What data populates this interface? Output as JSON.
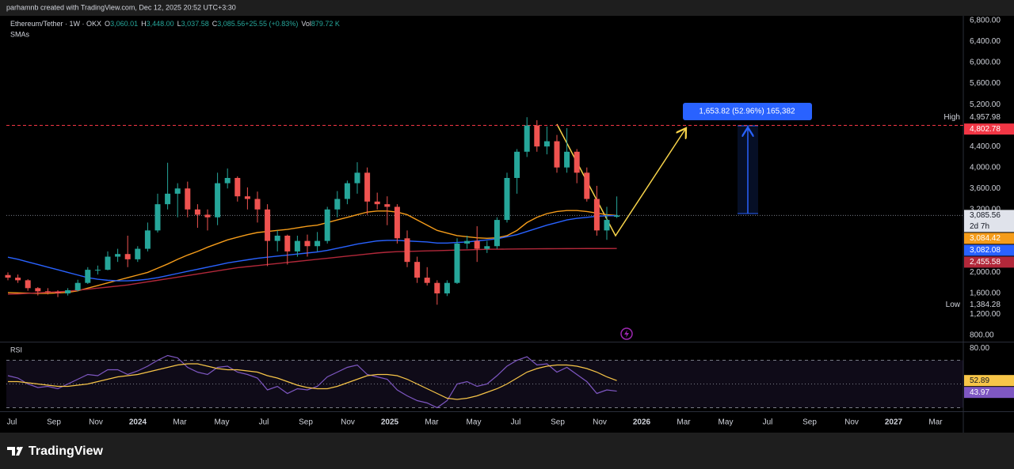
{
  "header": {
    "credit": "parhamnb created with TradingView.com, Dec 12, 2025 20:52 UTC+3:30"
  },
  "footer": {
    "brand": "TradingView"
  },
  "chart_data": [
    {
      "type": "candlestick",
      "title": "Ethereum/Tether · 1W · OKX",
      "ohlc_legend": [
        {
          "key": "O",
          "value": "3,060.01"
        },
        {
          "key": "H",
          "value": "3,448.00"
        },
        {
          "key": "L",
          "value": "3,037.58"
        },
        {
          "key": "C",
          "value": "3,085.56"
        },
        {
          "key": "",
          "value": "+25.55 (+0.83%)"
        },
        {
          "key": "Vol",
          "value": "879.72 K"
        }
      ],
      "indicator": "SMAs",
      "open": [
        1950,
        1900,
        1850,
        1700,
        1640,
        1630,
        1600,
        1660,
        1800,
        2050,
        2050,
        2300,
        2350,
        2250,
        2450,
        2800,
        3300,
        3500,
        3600,
        3200,
        3100,
        3050,
        3700,
        3800,
        3450,
        3400,
        3200,
        2600,
        2700,
        2400,
        2600,
        2500,
        2600,
        3200,
        3400,
        3700,
        3900,
        3350,
        3300,
        3250,
        2650,
        2200,
        1900,
        1800,
        1600,
        1800,
        2550,
        2600,
        2450,
        2500,
        3000,
        3800,
        4300,
        4800,
        4400,
        4500,
        4000,
        4300,
        3900,
        3400,
        2800,
        3060.01
      ],
      "high": [
        2000,
        1960,
        1870,
        1720,
        1700,
        1660,
        1700,
        1860,
        2100,
        2130,
        2400,
        2450,
        2700,
        2500,
        2950,
        3500,
        4090,
        3700,
        3730,
        3300,
        3200,
        3900,
        3980,
        3830,
        3620,
        3540,
        3300,
        2800,
        2720,
        2700,
        2720,
        2770,
        3250,
        3550,
        3750,
        4100,
        4000,
        3520,
        3450,
        3300,
        2800,
        2300,
        2100,
        1850,
        1850,
        2650,
        2700,
        2880,
        2600,
        3050,
        3900,
        4350,
        4957.98,
        4900,
        4780,
        4620,
        4750,
        4350,
        4000,
        3650,
        3250,
        3448
      ],
      "low": [
        1850,
        1800,
        1650,
        1560,
        1580,
        1530,
        1560,
        1640,
        1780,
        1960,
        2040,
        2200,
        2100,
        2200,
        2400,
        2760,
        3200,
        3050,
        3050,
        2850,
        2800,
        2900,
        3600,
        3350,
        3200,
        2950,
        2120,
        2400,
        2150,
        2300,
        2300,
        2400,
        2550,
        3050,
        3300,
        3500,
        3100,
        3200,
        2900,
        2550,
        2100,
        1800,
        1750,
        1384.28,
        1550,
        1780,
        2450,
        2200,
        2370,
        2450,
        2950,
        3500,
        4200,
        4300,
        4250,
        3900,
        3900,
        3700,
        3350,
        2700,
        2620,
        3037.58
      ],
      "close": [
        1900,
        1850,
        1700,
        1640,
        1630,
        1600,
        1660,
        1800,
        2050,
        2050,
        2300,
        2350,
        2250,
        2450,
        2800,
        3300,
        3500,
        3600,
        3200,
        3100,
        3050,
        3700,
        3800,
        3450,
        3400,
        3200,
        2600,
        2700,
        2400,
        2600,
        2500,
        2600,
        3200,
        3400,
        3700,
        3900,
        3350,
        3300,
        3250,
        2650,
        2200,
        1900,
        1800,
        1600,
        1800,
        2550,
        2600,
        2450,
        2500,
        3000,
        3800,
        4300,
        4800,
        4400,
        4500,
        4000,
        4300,
        3900,
        3400,
        2800,
        3000,
        3085.56
      ],
      "close_label": "3,085.56",
      "countdown": "2d 7h",
      "up_color": "#26a69a",
      "down_color": "#ef5350",
      "series": [
        {
          "color": "#f59c1a",
          "last_label": "3,084.42",
          "values": [
            1615,
            1610,
            1605,
            1600,
            1600,
            1610,
            1620,
            1650,
            1700,
            1750,
            1800,
            1850,
            1900,
            1950,
            2000,
            2080,
            2160,
            2250,
            2330,
            2400,
            2480,
            2550,
            2620,
            2670,
            2720,
            2760,
            2780,
            2800,
            2820,
            2850,
            2880,
            2900,
            2950,
            3000,
            3050,
            3100,
            3150,
            3170,
            3170,
            3150,
            3100,
            3000,
            2900,
            2800,
            2750,
            2700,
            2680,
            2660,
            2650,
            2660,
            2700,
            2800,
            2950,
            3050,
            3120,
            3160,
            3180,
            3180,
            3160,
            3130,
            3100,
            3084.42
          ]
        },
        {
          "color": "#2962ff",
          "last_label": "3,082.08",
          "values": [
            2290,
            2250,
            2200,
            2150,
            2100,
            2050,
            2000,
            1950,
            1900,
            1870,
            1850,
            1840,
            1840,
            1850,
            1870,
            1900,
            1940,
            1980,
            2020,
            2060,
            2100,
            2140,
            2180,
            2210,
            2240,
            2270,
            2290,
            2310,
            2330,
            2350,
            2370,
            2390,
            2420,
            2460,
            2500,
            2540,
            2570,
            2600,
            2610,
            2610,
            2600,
            2590,
            2580,
            2560,
            2560,
            2570,
            2580,
            2600,
            2620,
            2640,
            2680,
            2720,
            2780,
            2840,
            2900,
            2950,
            3000,
            3030,
            3050,
            3070,
            3080,
            3082.08
          ]
        },
        {
          "color": "#b2283a",
          "last_label": "2,455.58",
          "values": [
            1585,
            1590,
            1600,
            1610,
            1620,
            1630,
            1640,
            1660,
            1680,
            1700,
            1720,
            1740,
            1760,
            1790,
            1820,
            1850,
            1880,
            1910,
            1940,
            1970,
            2000,
            2030,
            2060,
            2090,
            2110,
            2130,
            2150,
            2170,
            2190,
            2210,
            2230,
            2250,
            2270,
            2290,
            2310,
            2330,
            2350,
            2370,
            2385,
            2395,
            2400,
            2405,
            2410,
            2415,
            2420,
            2425,
            2430,
            2435,
            2440,
            2442,
            2444,
            2446,
            2448,
            2450,
            2451,
            2452,
            2453,
            2454,
            2455,
            2455,
            2455,
            2455.58
          ]
        }
      ],
      "price_line": {
        "value": 4802.78,
        "label": "4,802.78",
        "color": "#f23645"
      },
      "high_marker": {
        "text": "High",
        "value": 4957.98,
        "label": "4,957.98"
      },
      "low_marker": {
        "text": "Low",
        "value": 1384.28,
        "label": "1,384.28"
      },
      "measure_label": "1,653.82 (52.96%) 165,382",
      "ylim": [
        680,
        6890
      ],
      "yticks": [
        {
          "value": 800,
          "label": "800.00"
        },
        {
          "value": 1200,
          "label": "1,200.00"
        },
        {
          "value": 1600,
          "label": "1,600.00"
        },
        {
          "value": 2000,
          "label": "2,000.00"
        },
        {
          "value": 3200,
          "label": "3,200.00"
        },
        {
          "value": 3600,
          "label": "3,600.00"
        },
        {
          "value": 4000,
          "label": "4,000.00"
        },
        {
          "value": 4400,
          "label": "4,400.00"
        },
        {
          "value": 5200,
          "label": "5,200.00"
        },
        {
          "value": 5600,
          "label": "5,600.00"
        },
        {
          "value": 6000,
          "label": "6,000.00"
        },
        {
          "value": 6400,
          "label": "6,400.00"
        },
        {
          "value": 6800,
          "label": "6,800.00"
        }
      ],
      "x_labels": [
        "Jul",
        "Sep",
        "Nov",
        "2024",
        "Mar",
        "May",
        "Jul",
        "Sep",
        "Nov",
        "2025",
        "Mar",
        "May",
        "Jul",
        "Sep",
        "Nov",
        "2026",
        "Mar",
        "May",
        "Jul",
        "Sep",
        "Nov",
        "2027",
        "Mar"
      ]
    },
    {
      "type": "line",
      "title": "RSI",
      "series": [
        {
          "color": "#7e57c2",
          "last_label": "43.97",
          "values": [
            57,
            55,
            50,
            47,
            48,
            46,
            50,
            54,
            58,
            57,
            62,
            62,
            58,
            61,
            65,
            70,
            74,
            72,
            64,
            60,
            58,
            64,
            65,
            60,
            58,
            55,
            45,
            48,
            42,
            46,
            45,
            48,
            56,
            60,
            64,
            66,
            58,
            56,
            54,
            45,
            40,
            36,
            34,
            30,
            36,
            50,
            52,
            48,
            50,
            57,
            65,
            70,
            73,
            66,
            67,
            60,
            64,
            58,
            52,
            42,
            45,
            43.97
          ]
        },
        {
          "color": "#f7c548",
          "last_label": "52.89",
          "values": [
            52,
            52,
            51,
            50,
            49,
            48,
            48,
            49,
            50,
            52,
            54,
            56,
            57,
            58,
            60,
            62,
            64,
            66,
            67,
            67,
            65,
            63,
            62,
            62,
            61,
            60,
            57,
            55,
            52,
            49,
            47,
            46,
            46,
            48,
            51,
            54,
            57,
            58,
            58,
            57,
            54,
            50,
            46,
            42,
            38,
            37,
            38,
            40,
            43,
            46,
            50,
            55,
            60,
            63,
            65,
            66,
            66,
            65,
            63,
            60,
            56,
            52.89
          ]
        }
      ],
      "levels": [
        70,
        50,
        30
      ],
      "ylim": [
        27,
        85
      ],
      "yticks": [
        {
          "value": 80,
          "label": "80.00"
        }
      ]
    }
  ]
}
